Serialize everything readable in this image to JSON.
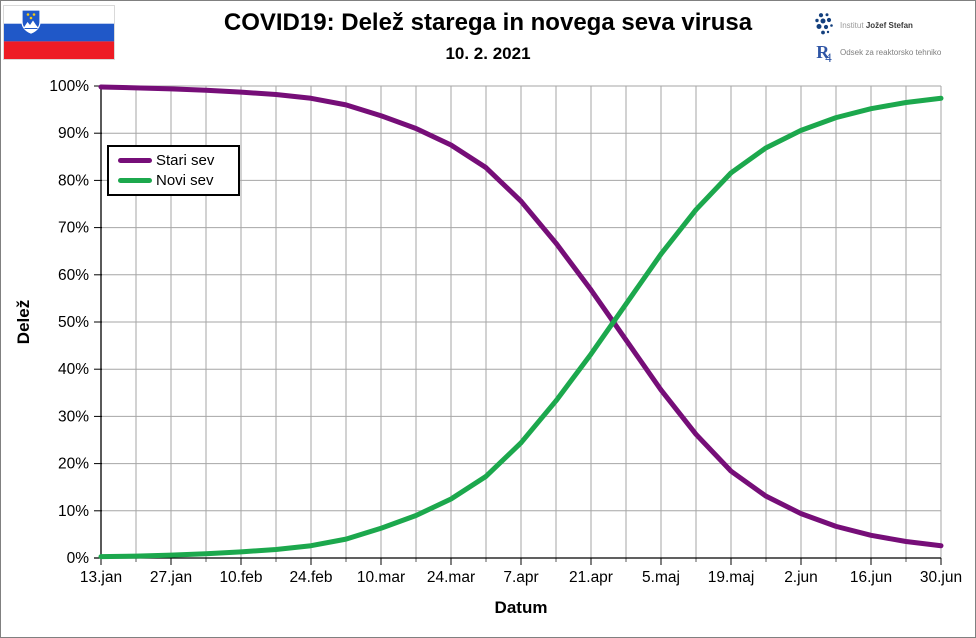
{
  "branding": {
    "flag": {
      "name": "Slovenia flag",
      "white": "#ffffff",
      "blue": "#2058c8",
      "red": "#ee1c25",
      "star_yellow": "#f5c913"
    },
    "ijs": {
      "prefix": "Institut",
      "name": "Jožef Stefan",
      "dot_color": "#14407e"
    },
    "r4": {
      "letter": "R",
      "digit": "4",
      "color": "#2f55a5",
      "department": "Odsek za reaktorsko tehniko"
    }
  },
  "chart_data": {
    "type": "line",
    "title": "COVID19: Delež starega in novega seva virusa",
    "subtitle": "10. 2. 2021",
    "xlabel": "Datum",
    "ylabel": "Delež",
    "ylim": [
      0,
      100
    ],
    "grid": "gray gridlines: vertical weekly, horizontal every 10%",
    "legend": {
      "position": "inside upper-left"
    },
    "x_unit": "days since 13.jan 2021",
    "x_days": [
      0,
      7,
      14,
      21,
      28,
      35,
      42,
      49,
      56,
      63,
      70,
      77,
      84,
      91,
      98,
      105,
      112,
      119,
      126,
      133,
      140,
      147,
      154,
      161,
      168
    ],
    "x_tick_days": [
      0,
      14,
      28,
      42,
      56,
      70,
      84,
      98,
      112,
      126,
      140,
      154,
      168
    ],
    "x_tick_labels": [
      "13.jan",
      "27.jan",
      "10.feb",
      "24.feb",
      "10.mar",
      "24.mar",
      "7.apr",
      "21.apr",
      "5.maj",
      "19.maj",
      "2.jun",
      "16.jun",
      "30.jun"
    ],
    "y_ticks": [
      0,
      10,
      20,
      30,
      40,
      50,
      60,
      70,
      80,
      90,
      100
    ],
    "y_tick_labels": [
      "0%",
      "10%",
      "20%",
      "30%",
      "40%",
      "50%",
      "60%",
      "70%",
      "80%",
      "90%",
      "100%"
    ],
    "series": [
      {
        "name": "Stari sev",
        "color": "#760E78",
        "values": [
          99.8,
          99.6,
          99.4,
          99.1,
          98.7,
          98.2,
          97.4,
          96.0,
          93.7,
          91.0,
          87.5,
          82.7,
          75.6,
          66.7,
          56.8,
          46.2,
          35.6,
          26.2,
          18.4,
          13.1,
          9.4,
          6.7,
          4.8,
          3.5,
          2.6
        ]
      },
      {
        "name": "Novi sev",
        "color": "#1CA84D",
        "values": [
          0.3,
          0.4,
          0.6,
          0.9,
          1.3,
          1.8,
          2.6,
          4.0,
          6.3,
          9.0,
          12.5,
          17.3,
          24.4,
          33.3,
          43.2,
          53.8,
          64.4,
          73.8,
          81.6,
          86.9,
          90.6,
          93.3,
          95.2,
          96.5,
          97.4
        ]
      }
    ],
    "crossing_point": {
      "label": "both strains at 50%",
      "approx_date": "25.apr",
      "value_pct": 50
    }
  }
}
